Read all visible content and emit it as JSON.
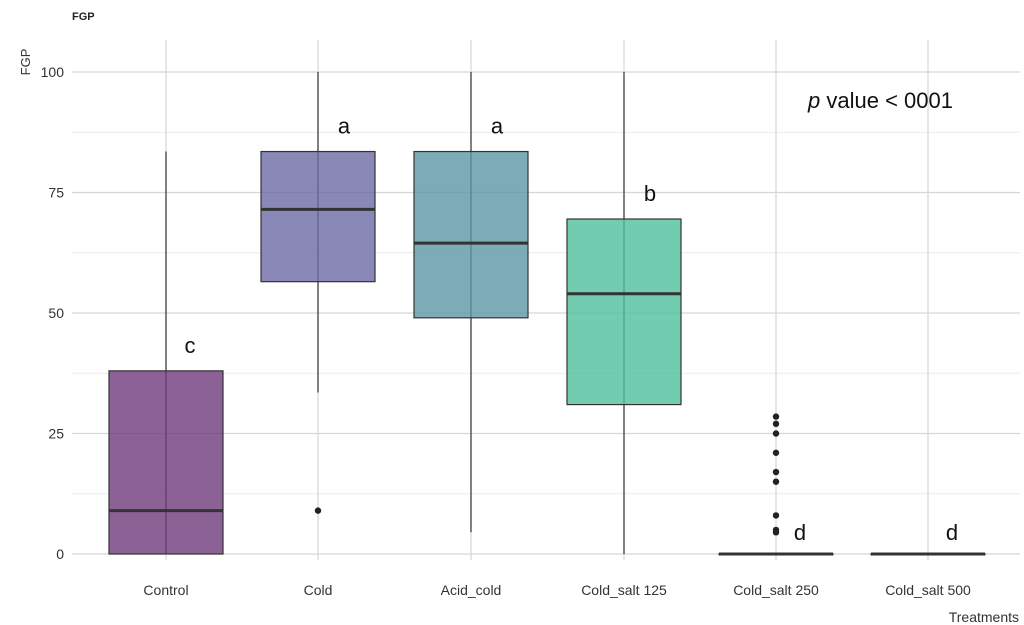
{
  "chart_data": {
    "type": "box",
    "title": "FGP",
    "ylabel": "FGP",
    "xlabel": "Treatments",
    "ylim": [
      0,
      100
    ],
    "yticks": [
      0,
      25,
      50,
      75,
      100
    ],
    "grid": true,
    "annotation": {
      "italic": "p",
      "rest": " value < 0001"
    },
    "categories": [
      "Control",
      "Cold",
      "Acid_cold",
      "Cold_salt 125",
      "Cold_salt 250",
      "Cold_salt 500"
    ],
    "boxes": [
      {
        "category": "Control",
        "min": 0,
        "q1": 0,
        "median": 9,
        "q3": 38,
        "max": 83.5,
        "outliers": [],
        "color": "#6f3a7a",
        "letter": "c"
      },
      {
        "category": "Cold",
        "min": 33.5,
        "q1": 56.5,
        "median": 71.5,
        "q3": 83.5,
        "max": 100,
        "outliers": [
          9
        ],
        "color": "#6b6aa4",
        "letter": "a"
      },
      {
        "category": "Acid_cold",
        "min": 4.5,
        "q1": 49,
        "median": 64.5,
        "q3": 83.5,
        "max": 100,
        "outliers": [],
        "color": "#5c97a4",
        "letter": "a"
      },
      {
        "category": "Cold_salt 125",
        "min": 0,
        "q1": 31,
        "median": 54,
        "q3": 69.5,
        "max": 100,
        "outliers": [],
        "color": "#4fc09c",
        "letter": "b"
      },
      {
        "category": "Cold_salt 250",
        "min": 0,
        "q1": 0,
        "median": 0,
        "q3": 0,
        "max": 0,
        "outliers": [
          4.5,
          5,
          8,
          15,
          17,
          21,
          25,
          27,
          28.5
        ],
        "color": "#4fc09c",
        "letter": "d"
      },
      {
        "category": "Cold_salt 500",
        "min": 0,
        "q1": 0,
        "median": 0,
        "q3": 0,
        "max": 0,
        "outliers": [],
        "color": "#4fc09c",
        "letter": "d"
      }
    ]
  }
}
